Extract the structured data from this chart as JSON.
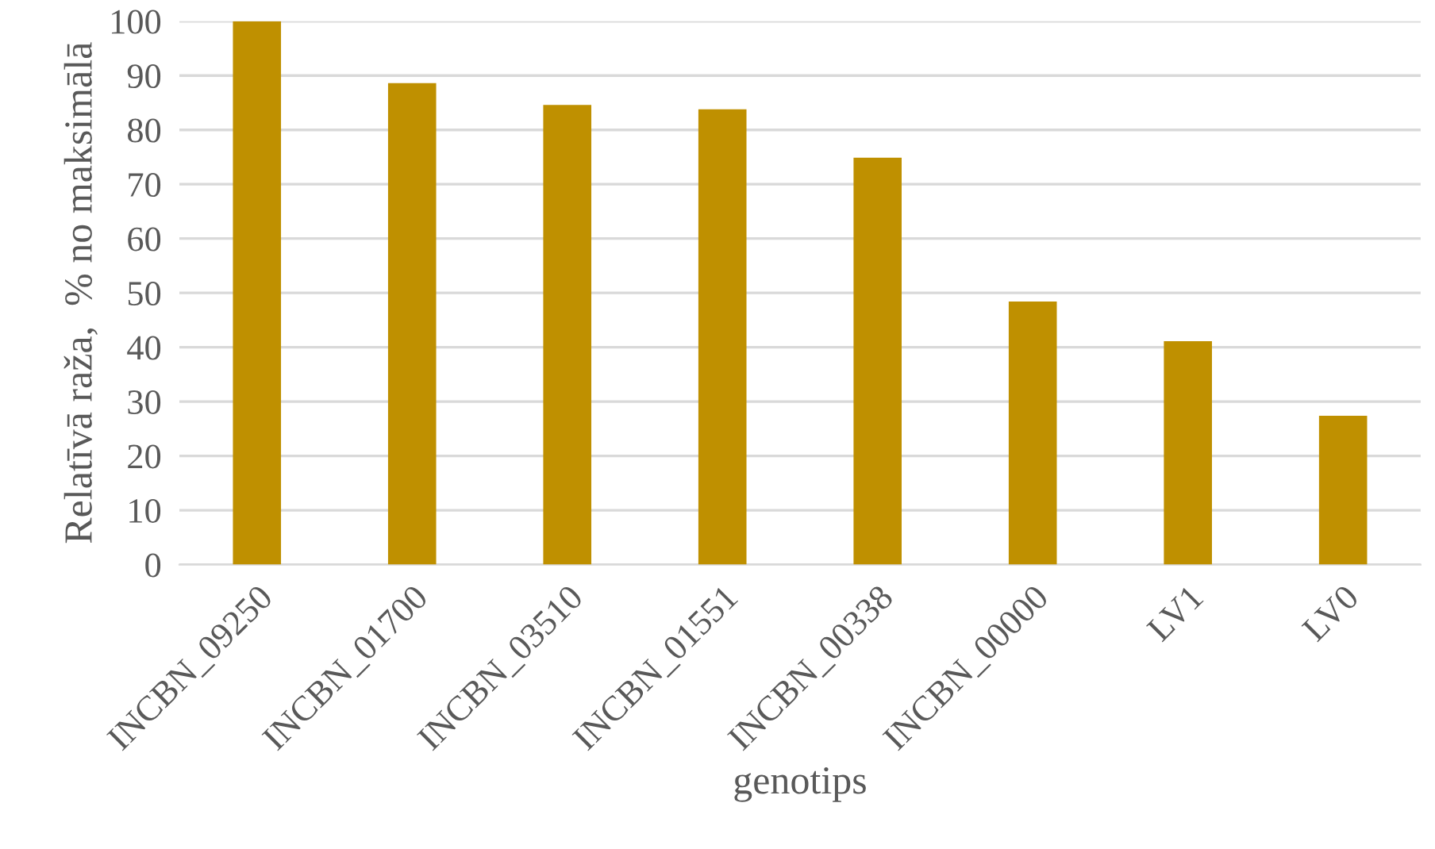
{
  "chart_data": {
    "type": "bar",
    "xlabel": "genotips",
    "ylabel": "Relatīvā raža,  % no maksimālā",
    "categories": [
      "INCBN_09250",
      "INCBN_01700",
      "INCBN_03510",
      "INCBN_01551",
      "INCBN_00338",
      "INCBN_00000",
      "LV1",
      "LV0"
    ],
    "values": [
      100,
      88.6,
      84.6,
      83.8,
      74.9,
      48.4,
      41.1,
      27.4
    ],
    "color": "#bf9000",
    "ylim": [
      0,
      100
    ],
    "yticks": [
      0,
      10,
      20,
      30,
      40,
      50,
      60,
      70,
      80,
      90,
      100
    ],
    "grid": "y",
    "legend": false
  }
}
